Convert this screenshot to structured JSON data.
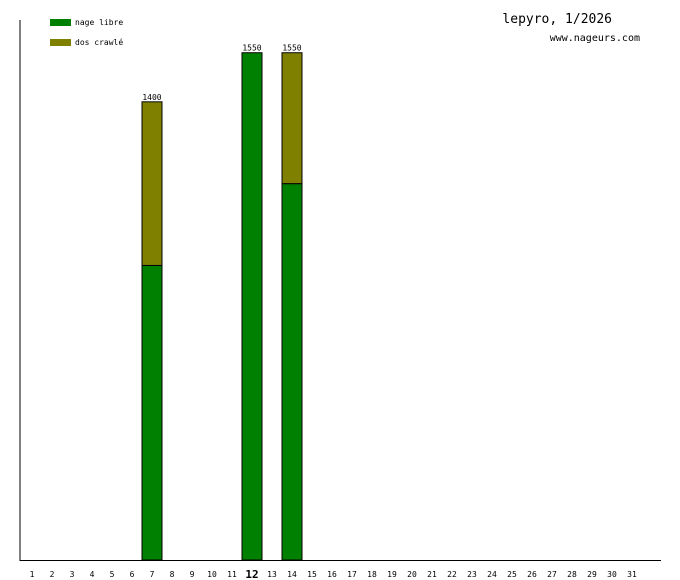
{
  "header": {
    "title": "lepyro, 1/2026",
    "site": "www.nageurs.com"
  },
  "legend": [
    {
      "label": "nage libre",
      "color": "#008000"
    },
    {
      "label": "dos crawlé",
      "color": "#808000"
    }
  ],
  "highlighted_day": "12",
  "chart_data": {
    "type": "bar",
    "stacked": true,
    "categories": [
      "1",
      "2",
      "3",
      "4",
      "5",
      "6",
      "7",
      "8",
      "9",
      "10",
      "11",
      "12",
      "13",
      "14",
      "15",
      "16",
      "17",
      "18",
      "19",
      "20",
      "21",
      "22",
      "23",
      "24",
      "25",
      "26",
      "27",
      "28",
      "29",
      "30",
      "31"
    ],
    "series": [
      {
        "name": "nage libre",
        "color": "#008000",
        "values": [
          0,
          0,
          0,
          0,
          0,
          0,
          900,
          0,
          0,
          0,
          0,
          1550,
          0,
          1150,
          0,
          0,
          0,
          0,
          0,
          0,
          0,
          0,
          0,
          0,
          0,
          0,
          0,
          0,
          0,
          0,
          0
        ]
      },
      {
        "name": "dos crawlé",
        "color": "#808000",
        "values": [
          0,
          0,
          0,
          0,
          0,
          0,
          500,
          0,
          0,
          0,
          0,
          0,
          0,
          400,
          0,
          0,
          0,
          0,
          0,
          0,
          0,
          0,
          0,
          0,
          0,
          0,
          0,
          0,
          0,
          0,
          0
        ]
      }
    ],
    "totals": [
      "",
      "",
      "",
      "",
      "",
      "",
      "1400",
      "",
      "",
      "",
      "",
      "1550",
      "",
      "1550",
      "",
      "",
      "",
      "",
      "",
      "",
      "",
      "",
      "",
      "",
      "",
      "",
      "",
      "",
      "",
      "",
      ""
    ],
    "ylim": [
      0,
      1650
    ],
    "grid": false,
    "legend_position": "top-left"
  }
}
